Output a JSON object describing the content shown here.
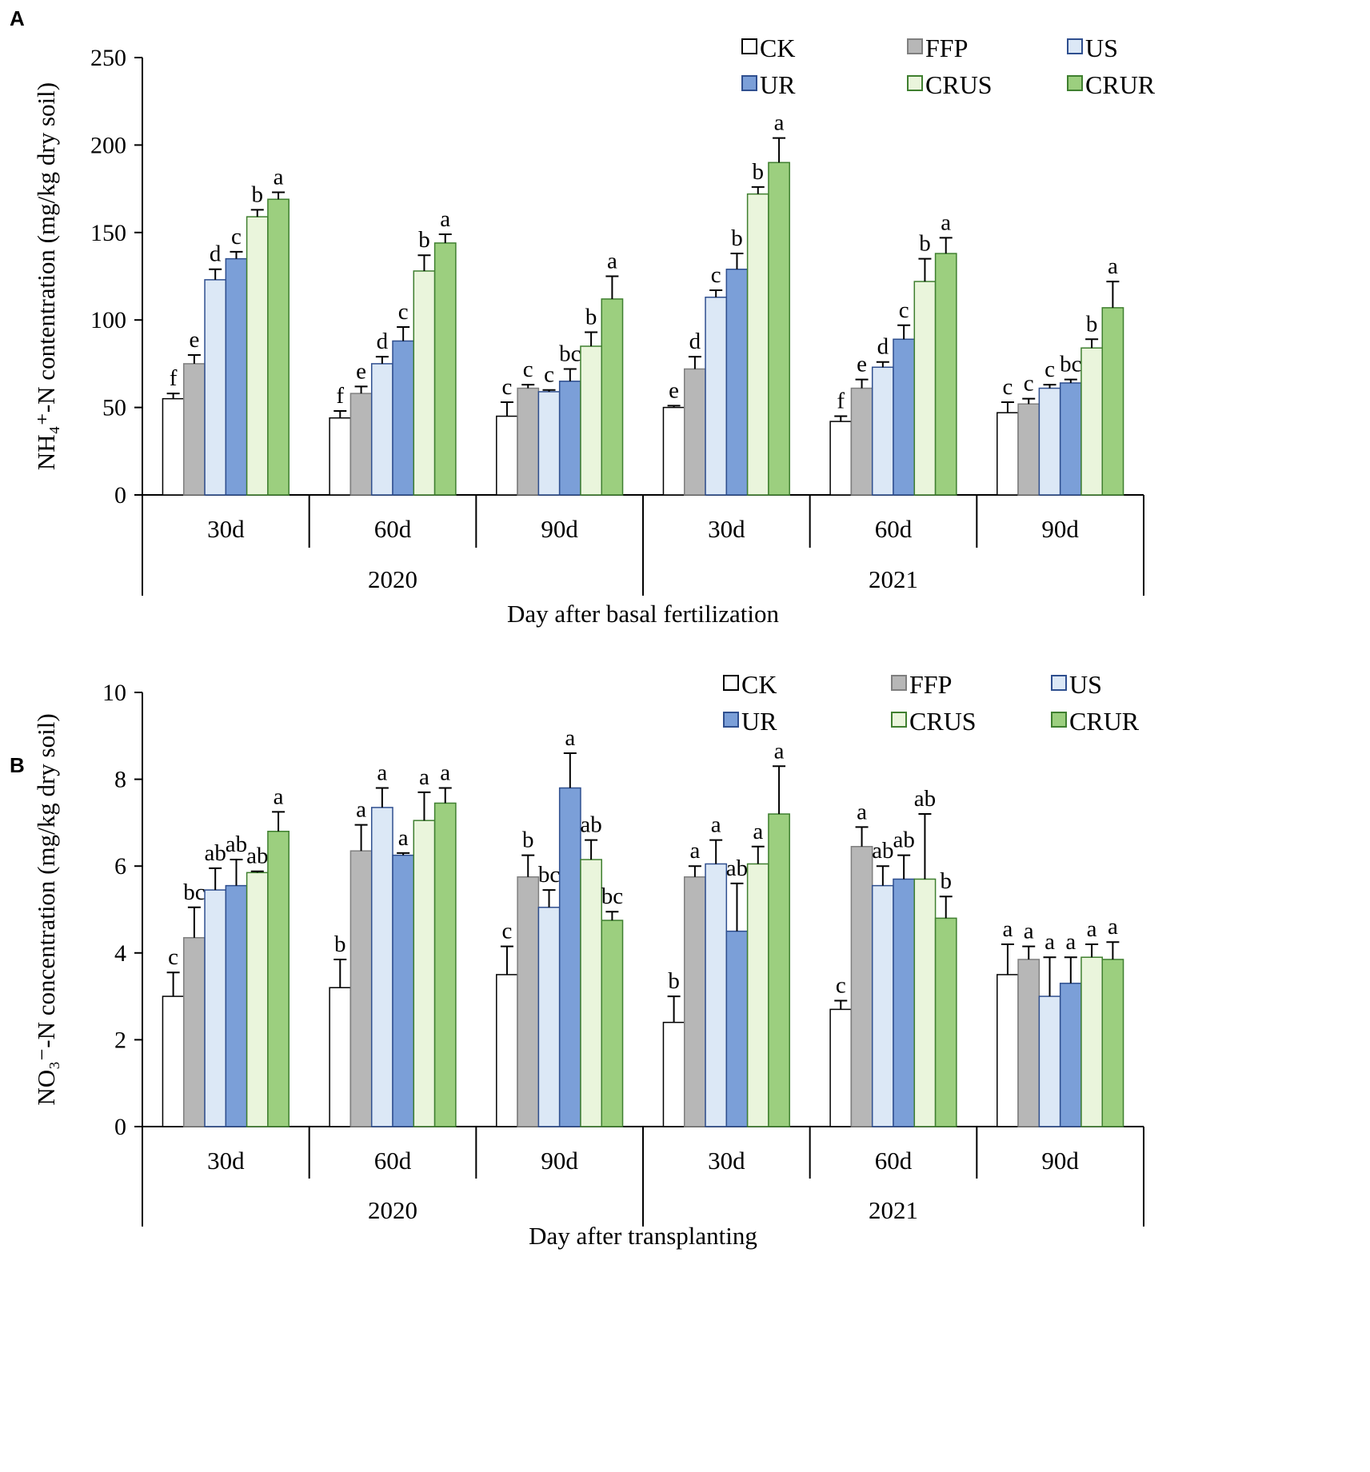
{
  "series_styles": [
    {
      "name": "CK",
      "fill": "#ffffff",
      "stroke": "#000000"
    },
    {
      "name": "FFP",
      "fill": "#b7b7b7",
      "stroke": "#7f7f7f"
    },
    {
      "name": "US",
      "fill": "#dce8f6",
      "stroke": "#2f4f8f"
    },
    {
      "name": "UR",
      "fill": "#7b9fd8",
      "stroke": "#2f4f8f"
    },
    {
      "name": "CRUS",
      "fill": "#eaf5dc",
      "stroke": "#3f7f2f"
    },
    {
      "name": "CRUR",
      "fill": "#9ccf7f",
      "stroke": "#3f7f2f"
    }
  ],
  "chart_data": [
    {
      "type": "bar",
      "panel": "A",
      "title": "",
      "ylabel": "NH₄⁺-N contentration (mg/kg dry soil)",
      "xlabel": "Day after basal fertilization",
      "ylim": [
        0,
        250
      ],
      "yticks": [
        0,
        50,
        100,
        150,
        200,
        250
      ],
      "groups": [
        "2020",
        "2021"
      ],
      "categories": [
        "30d",
        "60d",
        "90d",
        "30d",
        "60d",
        "90d"
      ],
      "series": [
        {
          "name": "CK",
          "values": [
            55,
            44,
            45,
            50,
            42,
            47
          ],
          "errors": [
            3,
            4,
            8,
            1,
            3,
            6
          ],
          "letters": [
            "f",
            "f",
            "c",
            "e",
            "f",
            "c"
          ]
        },
        {
          "name": "FFP",
          "values": [
            75,
            58,
            61,
            72,
            61,
            52
          ],
          "errors": [
            5,
            4,
            2,
            7,
            5,
            3
          ],
          "letters": [
            "e",
            "e",
            "c",
            "d",
            "e",
            "c"
          ]
        },
        {
          "name": "US",
          "values": [
            123,
            75,
            59,
            113,
            73,
            61
          ],
          "errors": [
            6,
            4,
            1,
            4,
            3,
            2
          ],
          "letters": [
            "d",
            "d",
            "c",
            "c",
            "d",
            "c"
          ]
        },
        {
          "name": "UR",
          "values": [
            135,
            88,
            65,
            129,
            89,
            64
          ],
          "errors": [
            4,
            8,
            7,
            9,
            8,
            2
          ],
          "letters": [
            "c",
            "c",
            "bc",
            "b",
            "c",
            "bc"
          ]
        },
        {
          "name": "CRUS",
          "values": [
            159,
            128,
            85,
            172,
            122,
            84
          ],
          "errors": [
            4,
            9,
            8,
            4,
            13,
            5
          ],
          "letters": [
            "b",
            "b",
            "b",
            "b",
            "b",
            "b"
          ]
        },
        {
          "name": "CRUR",
          "values": [
            169,
            144,
            112,
            190,
            138,
            107
          ],
          "errors": [
            4,
            5,
            13,
            14,
            9,
            15
          ],
          "letters": [
            "a",
            "a",
            "a",
            "a",
            "a",
            "a"
          ]
        }
      ]
    },
    {
      "type": "bar",
      "panel": "B",
      "title": "",
      "ylabel": "NO₃⁻-N concentration (mg/kg dry soil)",
      "xlabel": "Day after transplanting",
      "ylim": [
        0,
        10
      ],
      "yticks": [
        0,
        2,
        4,
        6,
        8,
        10
      ],
      "groups": [
        "2020",
        "2021"
      ],
      "categories": [
        "30d",
        "60d",
        "90d",
        "30d",
        "60d",
        "90d"
      ],
      "series": [
        {
          "name": "CK",
          "values": [
            3.0,
            3.2,
            3.5,
            2.4,
            2.7,
            3.5
          ],
          "errors": [
            0.55,
            0.65,
            0.65,
            0.6,
            0.2,
            0.7
          ],
          "letters": [
            "c",
            "b",
            "c",
            "b",
            "c",
            "a"
          ]
        },
        {
          "name": "FFP",
          "values": [
            4.35,
            6.35,
            5.75,
            5.75,
            6.45,
            3.85
          ],
          "errors": [
            0.7,
            0.6,
            0.5,
            0.25,
            0.45,
            0.3
          ],
          "letters": [
            "bc",
            "a",
            "b",
            "a",
            "a",
            "a"
          ]
        },
        {
          "name": "US",
          "values": [
            5.45,
            7.35,
            5.05,
            6.05,
            5.55,
            3.0
          ],
          "errors": [
            0.5,
            0.45,
            0.4,
            0.55,
            0.45,
            0.9
          ],
          "letters": [
            "ab",
            "a",
            "bc",
            "a",
            "ab",
            "a"
          ]
        },
        {
          "name": "UR",
          "values": [
            5.55,
            6.25,
            7.8,
            4.5,
            5.7,
            3.3
          ],
          "errors": [
            0.6,
            0.05,
            0.8,
            1.1,
            0.55,
            0.6
          ],
          "letters": [
            "ab",
            "a",
            "a",
            "ab",
            "ab",
            "a"
          ]
        },
        {
          "name": "CRUS",
          "values": [
            5.85,
            7.05,
            6.15,
            6.05,
            5.7,
            3.9
          ],
          "errors": [
            0.03,
            0.65,
            0.45,
            0.4,
            1.5,
            0.3
          ],
          "letters": [
            "ab",
            "a",
            "ab",
            "a",
            "ab",
            "a"
          ]
        },
        {
          "name": "CRUR",
          "values": [
            6.8,
            7.45,
            4.75,
            7.2,
            4.8,
            3.85
          ],
          "errors": [
            0.45,
            0.35,
            0.2,
            1.1,
            0.5,
            0.4
          ],
          "letters": [
            "a",
            "a",
            "bc",
            "a",
            "b",
            "a"
          ]
        }
      ]
    }
  ]
}
